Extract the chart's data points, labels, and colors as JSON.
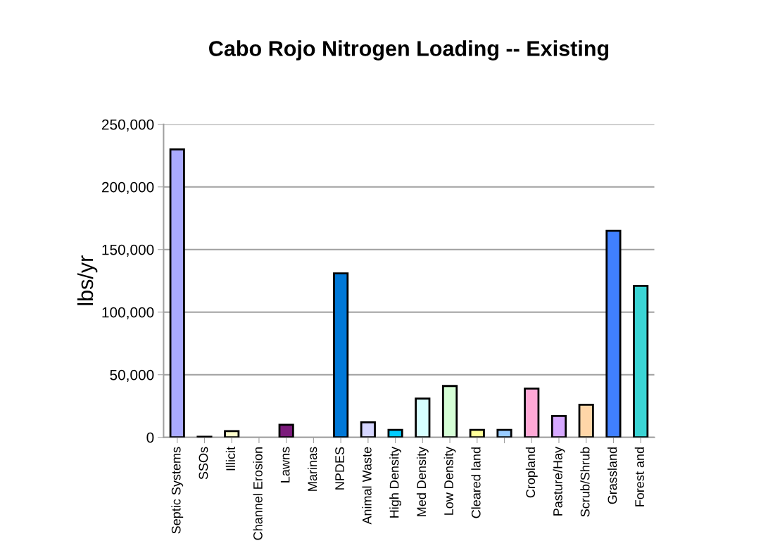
{
  "chart_data": {
    "type": "bar",
    "title": "Cabo Rojo Nitrogen Loading -- Existing",
    "ylabel": "lbs/yr",
    "categories": [
      "Septic Systems",
      "SSOs",
      "Illicit",
      "Channel Erosion",
      "Lawns",
      "Marinas",
      "NPDES",
      "Animal Waste",
      "High Density",
      "Med Density",
      "Low Density",
      "Cleared land",
      null,
      "Cropland",
      "Pasture/Hay",
      "Scrub/Shrub",
      "Grassland",
      "Forest and"
    ],
    "values": [
      230000,
      500,
      5000,
      null,
      10000,
      null,
      131000,
      12000,
      6000,
      31000,
      41000,
      6000,
      6000,
      39000,
      17000,
      26000,
      165000,
      121000
    ],
    "colors": [
      "#aaaaff",
      "#333333",
      "#ffffcc",
      null,
      "#7b1a7b",
      null,
      "#0078d7",
      "#d6d6ff",
      "#00ccff",
      "#d6ffff",
      "#d6ffd6",
      "#ffff99",
      "#99ccff",
      "#ffa8d6",
      "#d6a8ff",
      "#ffd6a8",
      "#4080ff",
      "#3ad4d4"
    ],
    "ylim": [
      0,
      250000
    ],
    "yticks": [
      {
        "value": 0,
        "label": "0"
      },
      {
        "value": 50000,
        "label": "50,000"
      },
      {
        "value": 100000,
        "label": "100,000"
      },
      {
        "value": 150000,
        "label": "150,000"
      },
      {
        "value": 200000,
        "label": "200,000"
      },
      {
        "value": 250000,
        "label": "250,000"
      }
    ],
    "grid": "y"
  }
}
